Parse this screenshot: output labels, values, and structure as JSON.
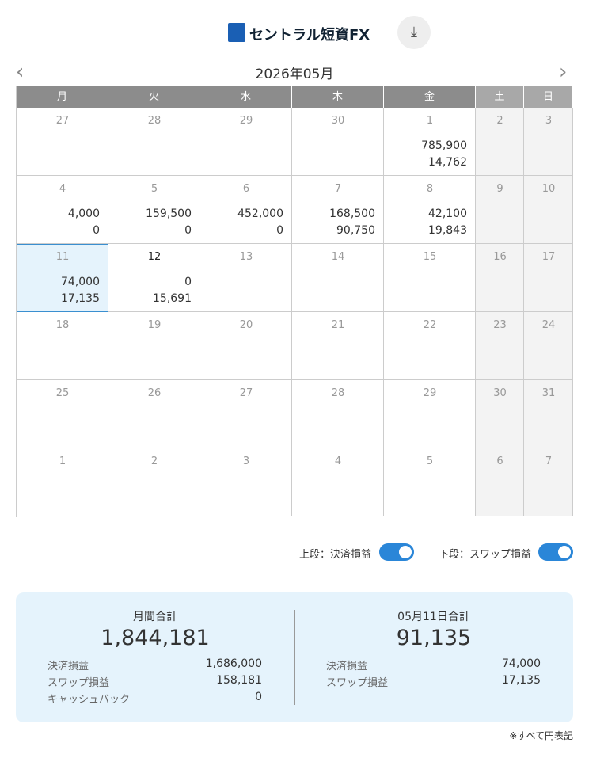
{
  "header": {
    "logo": "セントラル短資FX"
  },
  "calendar": {
    "month": "2026年05月",
    "weekdays": [
      "月",
      "火",
      "水",
      "木",
      "金",
      "土",
      "日"
    ],
    "weeks": [
      [
        {
          "day": 27
        },
        {
          "day": 28
        },
        {
          "day": 29
        },
        {
          "day": 30
        },
        {
          "day": 1,
          "upper": "785,900",
          "lower": "14,762"
        },
        {
          "day": 2
        },
        {
          "day": 3
        }
      ],
      [
        {
          "day": 4,
          "upper": "4,000",
          "lower": "0"
        },
        {
          "day": 5,
          "upper": "159,500",
          "lower": "0"
        },
        {
          "day": 6,
          "upper": "452,000",
          "lower": "0"
        },
        {
          "day": 7,
          "upper": "168,500",
          "lower": "90,750"
        },
        {
          "day": 8,
          "upper": "42,100",
          "lower": "19,843"
        },
        {
          "day": 9
        },
        {
          "day": 10
        }
      ],
      [
        {
          "day": 11,
          "upper": "74,000",
          "lower": "17,135",
          "selected": true
        },
        {
          "day": 12,
          "upper": "0",
          "lower": "15,691",
          "today": true
        },
        {
          "day": 13
        },
        {
          "day": 14
        },
        {
          "day": 15
        },
        {
          "day": 16
        },
        {
          "day": 17
        }
      ],
      [
        {
          "day": 18
        },
        {
          "day": 19
        },
        {
          "day": 20
        },
        {
          "day": 21
        },
        {
          "day": 22
        },
        {
          "day": 23
        },
        {
          "day": 24
        }
      ],
      [
        {
          "day": 25
        },
        {
          "day": 26
        },
        {
          "day": 27
        },
        {
          "day": 28
        },
        {
          "day": 29
        },
        {
          "day": 30
        },
        {
          "day": 31
        }
      ],
      [
        {
          "day": 1
        },
        {
          "day": 2
        },
        {
          "day": 3
        },
        {
          "day": 4
        },
        {
          "day": 5
        },
        {
          "day": 6
        },
        {
          "day": 7
        }
      ]
    ]
  },
  "toggles": [
    {
      "label": "上段：決済損益",
      "on": true
    },
    {
      "label": "下段：スワップ損益",
      "on": true
    }
  ],
  "summary": {
    "monthly": {
      "title": "月間合計",
      "total": "1,844,181",
      "rows": [
        [
          "決済損益",
          "1,686,000"
        ],
        [
          "スワップ損益",
          "158,181"
        ],
        [
          "キャッシュバック",
          "0"
        ]
      ]
    },
    "daily": {
      "title": "05月11日合計",
      "total": "91,135",
      "rows": [
        [
          "決済損益",
          "74,000"
        ],
        [
          "スワップ損益",
          "17,135"
        ]
      ]
    }
  },
  "note": "※すべて円表記"
}
